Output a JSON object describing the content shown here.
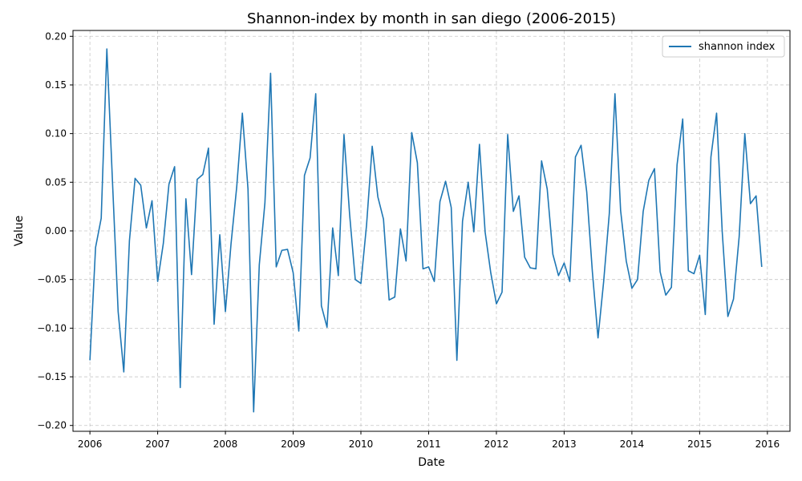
{
  "chart_data": {
    "type": "line",
    "title": "Shannon-index by month in san diego (2006-2015)",
    "xlabel": "Date",
    "ylabel": "Value",
    "x_ticks": [
      "2006",
      "2007",
      "2008",
      "2009",
      "2010",
      "2011",
      "2012",
      "2013",
      "2014",
      "2015",
      "2016"
    ],
    "y_ticks": [
      "−0.20",
      "−0.15",
      "−0.10",
      "−0.05",
      "0.00",
      "0.05",
      "0.10",
      "0.15",
      "0.20"
    ],
    "xlim": [
      "2005-10",
      "2016-05"
    ],
    "ylim": [
      -0.206,
      0.206
    ],
    "grid": true,
    "legend_position": "top-right",
    "series": [
      {
        "name": "shannon index",
        "color": "#1f77b4",
        "x": [
          "2006-01",
          "2006-02",
          "2006-03",
          "2006-04",
          "2006-05",
          "2006-06",
          "2006-07",
          "2006-08",
          "2006-09",
          "2006-10",
          "2006-11",
          "2006-12",
          "2007-01",
          "2007-02",
          "2007-03",
          "2007-04",
          "2007-05",
          "2007-06",
          "2007-07",
          "2007-08",
          "2007-09",
          "2007-10",
          "2007-11",
          "2007-12",
          "2008-01",
          "2008-02",
          "2008-03",
          "2008-04",
          "2008-05",
          "2008-06",
          "2008-07",
          "2008-08",
          "2008-09",
          "2008-10",
          "2008-11",
          "2008-12",
          "2009-01",
          "2009-02",
          "2009-03",
          "2009-04",
          "2009-05",
          "2009-06",
          "2009-07",
          "2009-08",
          "2009-09",
          "2009-10",
          "2009-11",
          "2009-12",
          "2010-01",
          "2010-02",
          "2010-03",
          "2010-04",
          "2010-05",
          "2010-06",
          "2010-07",
          "2010-08",
          "2010-09",
          "2010-10",
          "2010-11",
          "2010-12",
          "2011-01",
          "2011-02",
          "2011-03",
          "2011-04",
          "2011-05",
          "2011-06",
          "2011-07",
          "2011-08",
          "2011-09",
          "2011-10",
          "2011-11",
          "2011-12",
          "2012-01",
          "2012-02",
          "2012-03",
          "2012-04",
          "2012-05",
          "2012-06",
          "2012-07",
          "2012-08",
          "2012-09",
          "2012-10",
          "2012-11",
          "2012-12",
          "2013-01",
          "2013-02",
          "2013-03",
          "2013-04",
          "2013-05",
          "2013-06",
          "2013-07",
          "2013-08",
          "2013-09",
          "2013-10",
          "2013-11",
          "2013-12",
          "2014-01",
          "2014-02",
          "2014-03",
          "2014-04",
          "2014-05",
          "2014-06",
          "2014-07",
          "2014-08",
          "2014-09",
          "2014-10",
          "2014-11",
          "2014-12",
          "2015-01",
          "2015-02",
          "2015-03",
          "2015-04",
          "2015-05",
          "2015-06",
          "2015-07",
          "2015-08",
          "2015-09",
          "2015-10",
          "2015-11",
          "2015-12"
        ],
        "values": [
          -0.133,
          -0.017,
          0.013,
          0.187,
          0.05,
          -0.083,
          -0.145,
          -0.01,
          0.054,
          0.047,
          0.003,
          0.031,
          -0.052,
          -0.013,
          0.048,
          0.066,
          -0.161,
          0.033,
          -0.045,
          0.053,
          0.058,
          0.085,
          -0.096,
          -0.004,
          -0.083,
          -0.013,
          0.045,
          0.121,
          0.043,
          -0.186,
          -0.035,
          0.029,
          0.162,
          -0.037,
          -0.02,
          -0.019,
          -0.043,
          -0.103,
          0.057,
          0.075,
          0.141,
          -0.077,
          -0.099,
          0.003,
          -0.046,
          0.099,
          0.017,
          -0.05,
          -0.054,
          0.006,
          0.087,
          0.035,
          0.012,
          -0.071,
          -0.068,
          0.002,
          -0.031,
          0.101,
          0.07,
          -0.039,
          -0.037,
          -0.052,
          0.03,
          0.051,
          0.024,
          -0.133,
          0.01,
          0.05,
          -0.001,
          0.089,
          -0.001,
          -0.043,
          -0.075,
          -0.063,
          0.099,
          0.02,
          0.036,
          -0.027,
          -0.038,
          -0.039,
          0.072,
          0.043,
          -0.024,
          -0.046,
          -0.033,
          -0.052,
          0.076,
          0.088,
          0.04,
          -0.042,
          -0.11,
          -0.052,
          0.018,
          0.141,
          0.021,
          -0.031,
          -0.059,
          -0.05,
          0.02,
          0.052,
          0.064,
          -0.042,
          -0.066,
          -0.058,
          0.068,
          0.115,
          -0.041,
          -0.044,
          -0.025,
          -0.086,
          0.076,
          0.121,
          -0.001,
          -0.088,
          -0.07,
          -0.006,
          0.1,
          0.028,
          0.036,
          -0.037
        ]
      }
    ]
  }
}
